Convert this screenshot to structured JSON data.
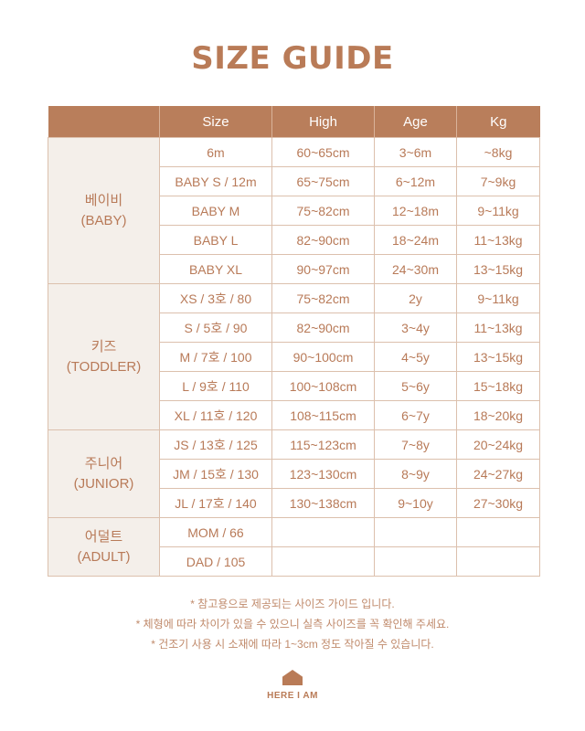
{
  "title": "SIZE GUIDE",
  "headers": [
    "",
    "Size",
    "High",
    "Age",
    "Kg"
  ],
  "groups": [
    {
      "ko": "베이비",
      "en": "(BABY)",
      "rows": [
        [
          "6m",
          "60~65cm",
          "3~6m",
          "~8kg"
        ],
        [
          "BABY S / 12m",
          "65~75cm",
          "6~12m",
          "7~9kg"
        ],
        [
          "BABY M",
          "75~82cm",
          "12~18m",
          "9~11kg"
        ],
        [
          "BABY L",
          "82~90cm",
          "18~24m",
          "11~13kg"
        ],
        [
          "BABY XL",
          "90~97cm",
          "24~30m",
          "13~15kg"
        ]
      ]
    },
    {
      "ko": "키즈",
      "en": "(TODDLER)",
      "rows": [
        [
          "XS / 3호 / 80",
          "75~82cm",
          "2y",
          "9~11kg"
        ],
        [
          "S / 5호 / 90",
          "82~90cm",
          "3~4y",
          "11~13kg"
        ],
        [
          "M / 7호 / 100",
          "90~100cm",
          "4~5y",
          "13~15kg"
        ],
        [
          "L / 9호 / 110",
          "100~108cm",
          "5~6y",
          "15~18kg"
        ],
        [
          "XL / 11호 / 120",
          "108~115cm",
          "6~7y",
          "18~20kg"
        ]
      ]
    },
    {
      "ko": "주니어",
      "en": "(JUNIOR)",
      "rows": [
        [
          "JS / 13호 / 125",
          "115~123cm",
          "7~8y",
          "20~24kg"
        ],
        [
          "JM / 15호 / 130",
          "123~130cm",
          "8~9y",
          "24~27kg"
        ],
        [
          "JL / 17호 / 140",
          "130~138cm",
          "9~10y",
          "27~30kg"
        ]
      ]
    },
    {
      "ko": "어덜트",
      "en": "(ADULT)",
      "rows": [
        [
          "MOM / 66",
          "",
          "",
          ""
        ],
        [
          "DAD / 105",
          "",
          "",
          ""
        ]
      ]
    }
  ],
  "notes": [
    "* 참고용으로 제공되는 사이즈 가이드 입니다.",
    "* 체형에 따라 차이가 있을 수 있으니 실측 사이즈를 꼭 확인해 주세요.",
    "* 건조기 사용 시 소재에 따라 1~3cm 정도 작아질 수 있습니다."
  ],
  "brand": "HERE I AM",
  "colors": {
    "accent": "#b97e5b",
    "text": "#b87a58",
    "group_bg": "#f4efea"
  }
}
